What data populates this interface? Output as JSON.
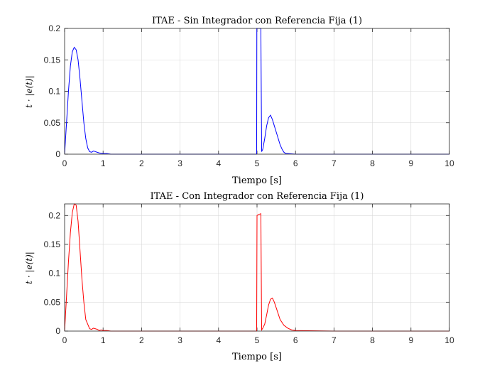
{
  "chart_data": [
    {
      "type": "line",
      "title": "ITAE - Sin Integrador con Referencia Fija (1)",
      "xlabel": "Tiempo [s]",
      "ylabel": "t · |e(t)|",
      "xlim": [
        0,
        10
      ],
      "ylim": [
        0,
        0.2
      ],
      "xticks": [
        "0",
        "1",
        "2",
        "3",
        "4",
        "5",
        "6",
        "7",
        "8",
        "9",
        "10"
      ],
      "yticks": [
        "0",
        "0.05",
        "0.1",
        "0.15",
        "0.2"
      ],
      "xtick_values": [
        0,
        1,
        2,
        3,
        4,
        5,
        6,
        7,
        8,
        9,
        10
      ],
      "ytick_values": [
        0,
        0.05,
        0.1,
        0.15,
        0.2
      ],
      "grid": true,
      "series": [
        {
          "color": "#0000ff",
          "x": [
            0,
            0.05,
            0.1,
            0.15,
            0.2,
            0.25,
            0.3,
            0.35,
            0.4,
            0.45,
            0.5,
            0.55,
            0.6,
            0.65,
            0.7,
            0.75,
            0.8,
            0.85,
            0.9,
            1.0,
            1.1,
            1.2,
            1.5,
            2,
            3,
            4,
            4.99,
            4.995,
            5.0,
            5.05,
            5.1,
            5.12,
            5.15,
            5.2,
            5.25,
            5.3,
            5.35,
            5.4,
            5.45,
            5.5,
            5.55,
            5.6,
            5.65,
            5.7,
            5.75,
            5.8,
            6,
            7,
            8,
            9,
            10
          ],
          "y": [
            0,
            0.05,
            0.1,
            0.14,
            0.163,
            0.17,
            0.166,
            0.15,
            0.12,
            0.085,
            0.05,
            0.025,
            0.01,
            0.004,
            0.003,
            0.005,
            0.004,
            0.003,
            0.002,
            0.001,
            0.001,
            0,
            0,
            0,
            0,
            0,
            0,
            0.2,
            0.2,
            0.2,
            0.2,
            0.004,
            0.008,
            0.025,
            0.045,
            0.058,
            0.062,
            0.055,
            0.045,
            0.035,
            0.025,
            0.015,
            0.008,
            0.003,
            0.001,
            0.001,
            0,
            0,
            0,
            0,
            0
          ]
        }
      ]
    },
    {
      "type": "line",
      "title": "ITAE - Con Integrador con Referencia Fija (1)",
      "xlabel": "Tiempo [s]",
      "ylabel": "t · |e(t)|",
      "xlim": [
        0,
        10
      ],
      "ylim": [
        0,
        0.22
      ],
      "xticks": [
        "0",
        "1",
        "2",
        "3",
        "4",
        "5",
        "6",
        "7",
        "8",
        "9",
        "10"
      ],
      "yticks": [
        "0",
        "0.05",
        "0.1",
        "0.15",
        "0.2"
      ],
      "xtick_values": [
        0,
        1,
        2,
        3,
        4,
        5,
        6,
        7,
        8,
        9,
        10
      ],
      "ytick_values": [
        0,
        0.05,
        0.1,
        0.15,
        0.2
      ],
      "grid": true,
      "series": [
        {
          "color": "#ff0000",
          "x": [
            0,
            0.05,
            0.1,
            0.15,
            0.2,
            0.25,
            0.3,
            0.35,
            0.4,
            0.45,
            0.5,
            0.55,
            0.6,
            0.65,
            0.7,
            0.75,
            0.8,
            0.85,
            0.9,
            0.95,
            1.0,
            1.1,
            1.2,
            1.5,
            2,
            3,
            4,
            4.99,
            5.0,
            5.05,
            5.1,
            5.12,
            5.15,
            5.2,
            5.25,
            5.3,
            5.35,
            5.4,
            5.45,
            5.5,
            5.6,
            5.7,
            5.8,
            5.9,
            6,
            7,
            8,
            9,
            10
          ],
          "y": [
            0,
            0.06,
            0.12,
            0.17,
            0.205,
            0.22,
            0.218,
            0.19,
            0.14,
            0.09,
            0.05,
            0.02,
            0.012,
            0.004,
            0.003,
            0.005,
            0.004,
            0.003,
            0.001,
            0.002,
            0.001,
            0.001,
            0,
            0,
            0,
            0,
            0,
            0,
            0.2,
            0.202,
            0.203,
            0.002,
            0.005,
            0.012,
            0.028,
            0.045,
            0.055,
            0.057,
            0.05,
            0.04,
            0.02,
            0.01,
            0.005,
            0.002,
            0.001,
            0,
            0,
            0,
            0
          ]
        }
      ]
    }
  ]
}
